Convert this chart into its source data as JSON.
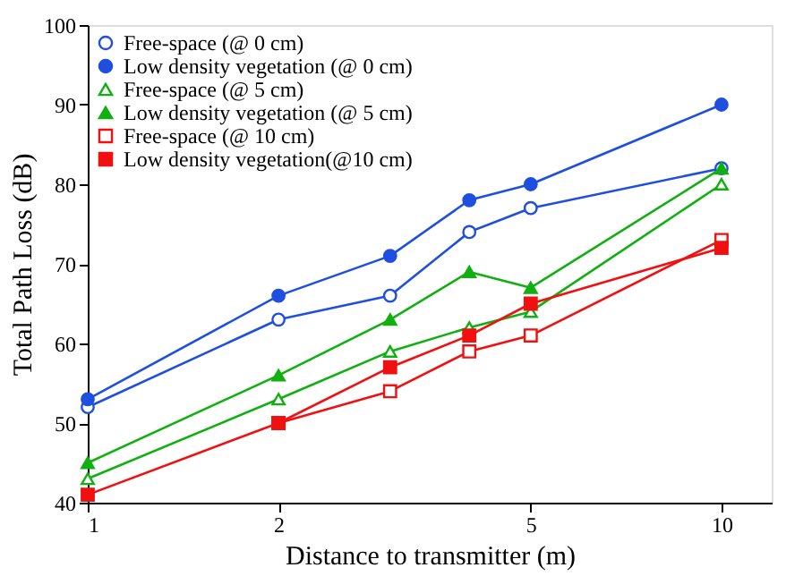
{
  "chart_data": {
    "type": "line",
    "xlabel": "Distance to transmitter (m)",
    "ylabel": "Total Path Loss (dB)",
    "x": [
      1,
      2,
      3,
      4,
      5,
      10
    ],
    "series": [
      {
        "name": "Free-space (@ 0 cm)",
        "color": "#1f4fe0",
        "marker": "circle",
        "values": [
          52,
          63,
          66,
          74,
          77,
          82
        ]
      },
      {
        "name": "Low density vegetation (@ 0 cm)",
        "color": "#1f4fe0",
        "marker": "circle",
        "values": [
          53,
          66,
          71,
          78,
          80,
          90
        ]
      },
      {
        "name": "Free-space (@ 5 cm)",
        "color": "#10b010",
        "marker": "triangle",
        "values": [
          43,
          53,
          59,
          62,
          64,
          80
        ]
      },
      {
        "name": "Low density vegetation  (@ 5 cm)",
        "color": "#10b010",
        "marker": "triangle",
        "values": [
          45,
          56,
          63,
          69,
          67,
          82
        ]
      },
      {
        "name": "Free-space (@ 10 cm)",
        "color": "#f01010",
        "marker": "square",
        "values": [
          null,
          50,
          54,
          59,
          61,
          73
        ]
      },
      {
        "name": "Low density vegetation(@10 cm)",
        "color": "#f01010",
        "marker": "square",
        "values": [
          41,
          50,
          57,
          61,
          65,
          72
        ]
      }
    ],
    "log": "x",
    "xlim": [
      1,
      12
    ],
    "xticks": [
      1,
      2,
      5,
      10
    ],
    "ylim": [
      40,
      100
    ],
    "yticks": [
      40,
      50,
      60,
      70,
      80,
      90,
      100
    ],
    "grid": false,
    "legend": "top left",
    "line_style": "solid"
  }
}
